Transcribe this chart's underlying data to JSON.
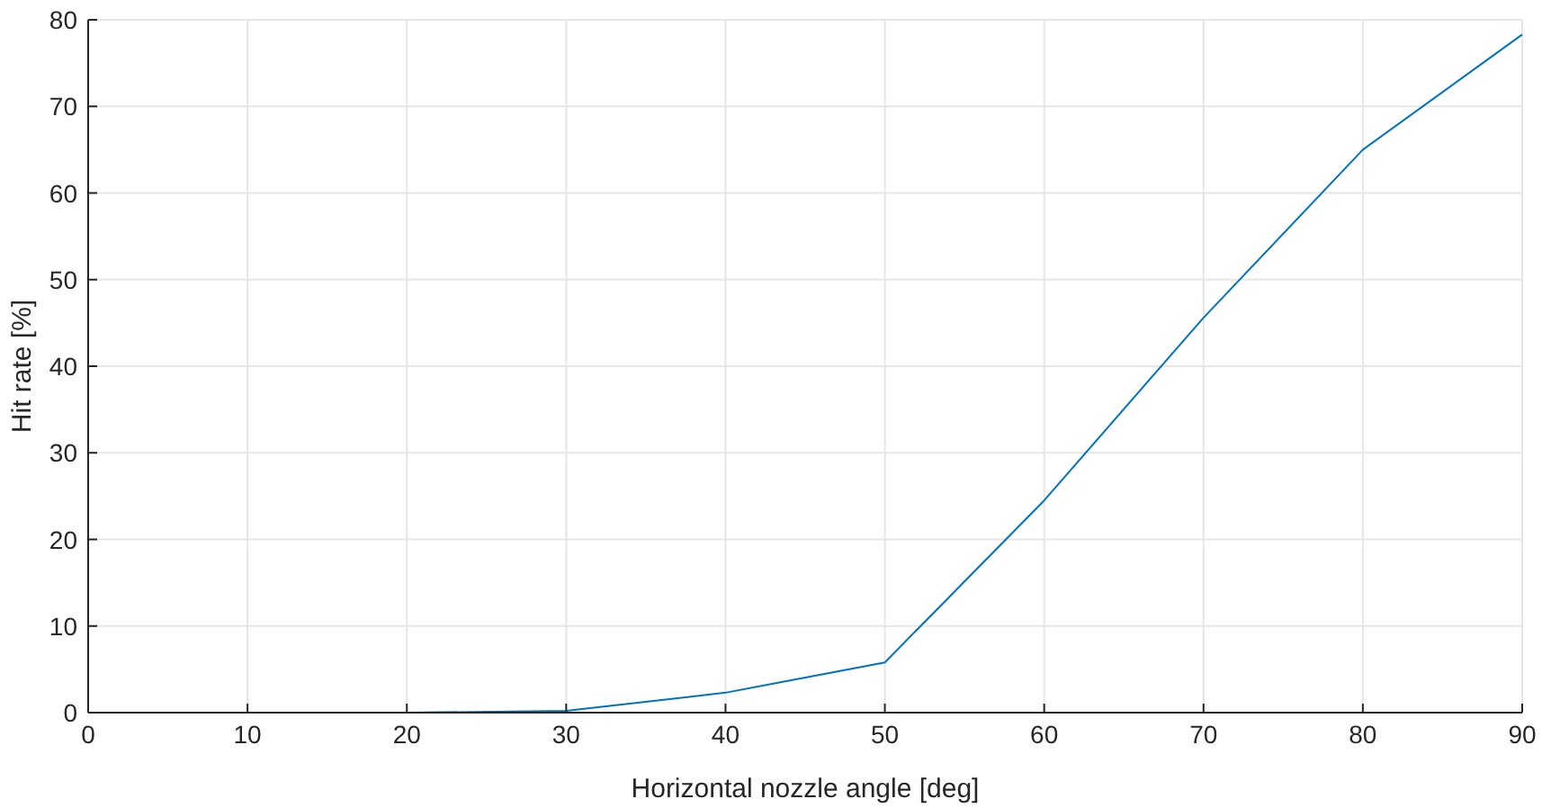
{
  "chart_data": {
    "type": "line",
    "xlabel": "Horizontal nozzle angle [deg]",
    "ylabel": "Hit rate [%]",
    "x": [
      0,
      10,
      20,
      30,
      40,
      50,
      60,
      70,
      80,
      90
    ],
    "series": [
      {
        "color": "#0072bd",
        "values": [
          0,
          0,
          0,
          0.2,
          2.3,
          5.8,
          24.5,
          45.6,
          65,
          78.3
        ]
      }
    ],
    "xlim": [
      0,
      90
    ],
    "xticks": [
      0,
      10,
      20,
      30,
      40,
      50,
      60,
      70,
      80,
      90
    ],
    "ylim": [
      0,
      80
    ],
    "yticks": [
      0,
      10,
      20,
      30,
      40,
      50,
      60,
      70,
      80
    ],
    "grid": true,
    "marker": "none",
    "line_style": "solid"
  }
}
